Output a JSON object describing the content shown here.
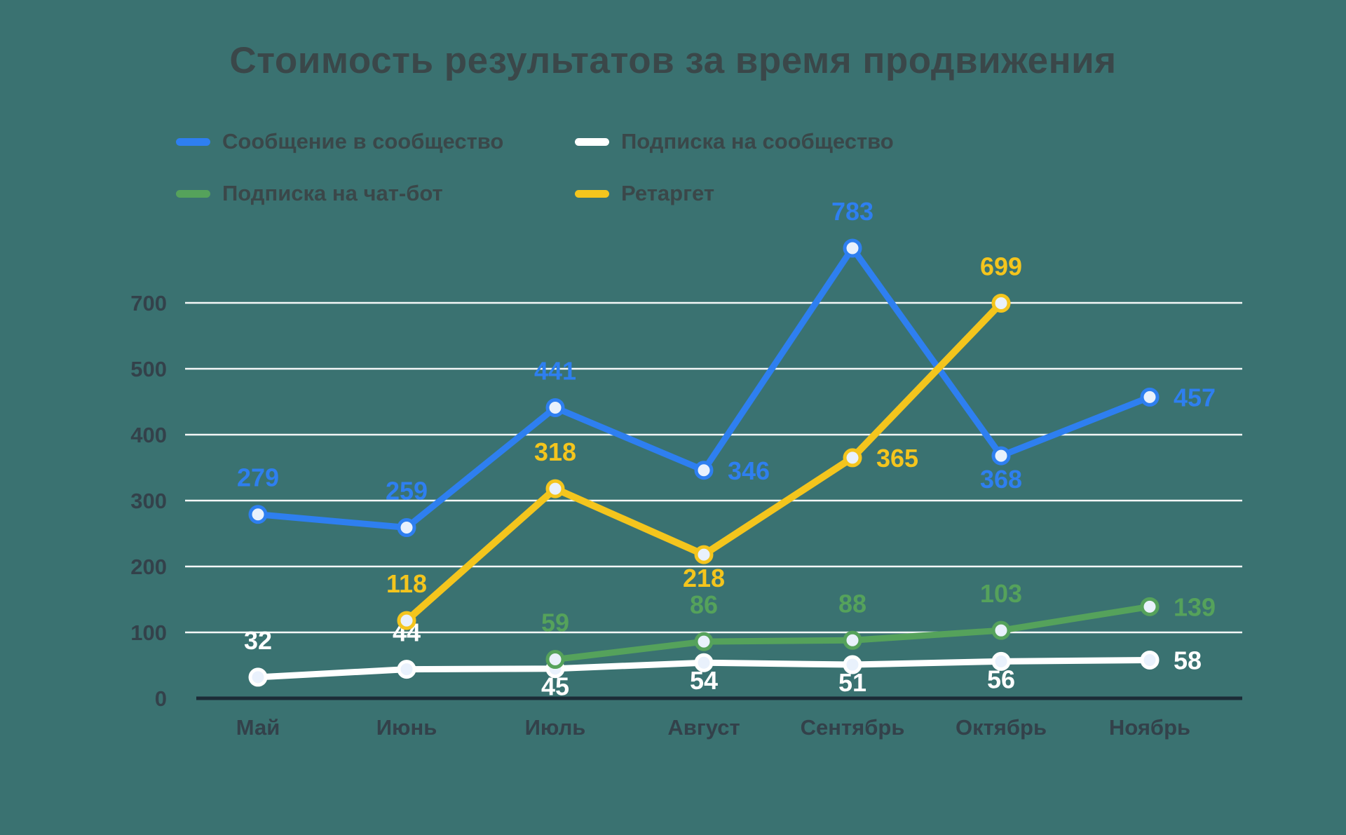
{
  "colors": {
    "background": "#3A7271",
    "text_dark": "#3A4749",
    "grid": "#FFFFFF",
    "axis": "#1C2B36",
    "point_fill": "#E9F1FC"
  },
  "chart_data": {
    "type": "line",
    "title": "Стоимость результатов за время продвижения",
    "xlabel": "",
    "ylabel": "",
    "categories": [
      "Май",
      "Июнь",
      "Июль",
      "Август",
      "Сентябрь",
      "Октябрь",
      "Ноябрь"
    ],
    "y_ticks": [
      700,
      500,
      400,
      300,
      200,
      100,
      0
    ],
    "ylim": [
      0,
      800
    ],
    "grid": true,
    "legend_position": "top-left",
    "series": [
      {
        "name": "Сообщение в сообщество",
        "color": "#2E7FF0",
        "start_index": 0,
        "values": [
          279,
          259,
          441,
          346,
          783,
          368,
          457
        ],
        "label_pos": [
          "above",
          "above",
          "above",
          "right",
          "above",
          "below",
          "right"
        ]
      },
      {
        "name": "Подписка на сообщество",
        "color": "#FFFFFF",
        "start_index": 0,
        "values": [
          32,
          44,
          45,
          54,
          51,
          56,
          58
        ],
        "label_pos": [
          "above",
          "above",
          "below",
          "below",
          "below",
          "below",
          "right"
        ],
        "below_dy": -8
      },
      {
        "name": "Подписка на чат-бот",
        "color": "#55A25B",
        "start_index": 2,
        "values": [
          59,
          86,
          88,
          103,
          139
        ],
        "label_pos": [
          "above",
          "above",
          "above",
          "above",
          "right"
        ]
      },
      {
        "name": "Ретаргет",
        "color": "#F4C51D",
        "start_index": 1,
        "values": [
          118,
          318,
          218,
          365,
          699
        ],
        "label_pos": [
          "above",
          "above",
          "below",
          "right",
          "above"
        ]
      }
    ]
  }
}
